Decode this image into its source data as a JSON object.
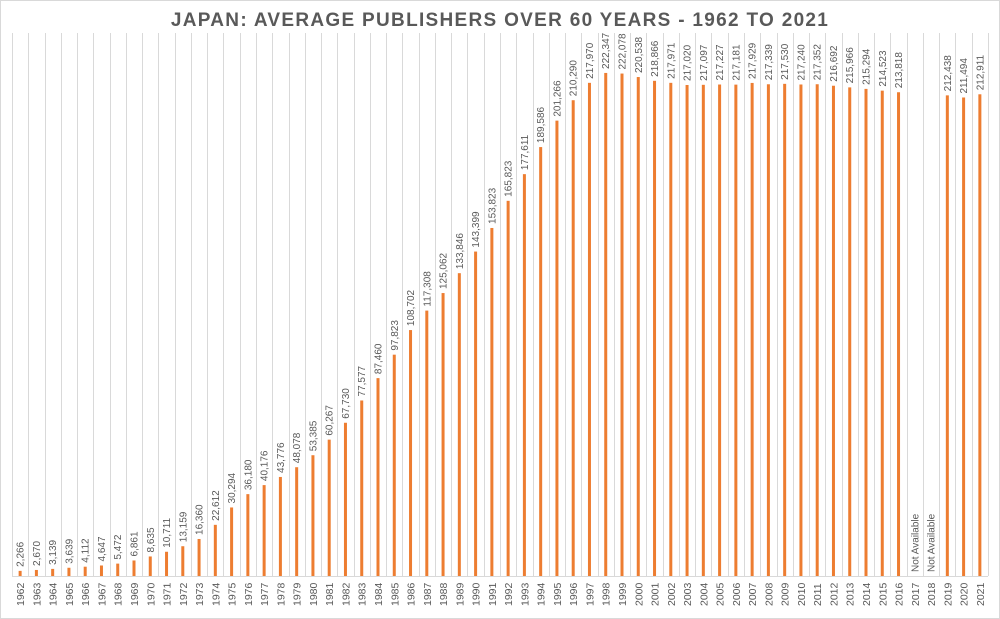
{
  "chart_data": {
    "type": "bar",
    "title": "JAPAN: AVERAGE PUBLISHERS OVER 60 YEARS -  1962 TO  2021",
    "xlabel": "",
    "ylabel": "",
    "ylim": [
      0,
      240000
    ],
    "grid": "vertical",
    "legend": "none",
    "bar_color": "#ED7D31",
    "grid_color": "#d9d9d9",
    "text_color": "#595959",
    "categories": [
      "1962",
      "1963",
      "1964",
      "1965",
      "1966",
      "1967",
      "1968",
      "1969",
      "1970",
      "1971",
      "1972",
      "1973",
      "1974",
      "1975",
      "1976",
      "1977",
      "1978",
      "1979",
      "1980",
      "1981",
      "1982",
      "1983",
      "1984",
      "1985",
      "1986",
      "1987",
      "1988",
      "1989",
      "1990",
      "1991",
      "1992",
      "1993",
      "1994",
      "1995",
      "1996",
      "1997",
      "1998",
      "1999",
      "2000",
      "2001",
      "2002",
      "2003",
      "2004",
      "2005",
      "2006",
      "2007",
      "2008",
      "2009",
      "2010",
      "2011",
      "2012",
      "2013",
      "2014",
      "2015",
      "2016",
      "2017",
      "2018",
      "2019",
      "2020",
      "2021"
    ],
    "values": [
      2266,
      2670,
      3139,
      3639,
      4112,
      4647,
      5472,
      6861,
      8635,
      10711,
      13159,
      16360,
      22612,
      30294,
      36180,
      40176,
      43776,
      48078,
      53385,
      60267,
      67730,
      77577,
      87460,
      97823,
      108702,
      117308,
      125062,
      133846,
      143399,
      153823,
      165823,
      177611,
      189586,
      201266,
      210290,
      217970,
      222347,
      222078,
      220538,
      218866,
      217971,
      217020,
      217097,
      217227,
      217181,
      217929,
      217339,
      217530,
      217240,
      217352,
      216692,
      215966,
      215294,
      214523,
      213818,
      null,
      null,
      212438,
      211494,
      212911
    ],
    "data_labels": [
      "2,266",
      "2,670",
      "3,139",
      "3,639",
      "4,112",
      "4,647",
      "5,472",
      "6,861",
      "8,635",
      "10,711",
      "13,159",
      "16,360",
      "22,612",
      "30,294",
      "36,180",
      "40,176",
      "43,776",
      "48,078",
      "53,385",
      "60,267",
      "67,730",
      "77,577",
      "87,460",
      "97,823",
      "108,702",
      "117,308",
      "125,062",
      "133,846",
      "143,399",
      "153,823",
      "165,823",
      "177,611",
      "189,586",
      "201,266",
      "210,290",
      "217,970",
      "222,347",
      "222,078",
      "220,538",
      "218,866",
      "217,971",
      "217,020",
      "217,097",
      "217,227",
      "217,181",
      "217,929",
      "217,339",
      "217,530",
      "217,240",
      "217,352",
      "216,692",
      "215,966",
      "215,294",
      "214,523",
      "213,818",
      "Not Available",
      "Not Available",
      "212,438",
      "211,494",
      "212,911"
    ]
  }
}
